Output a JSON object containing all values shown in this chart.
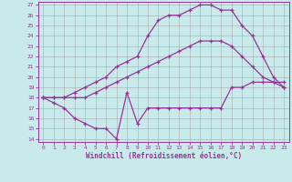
{
  "xlabel": "Windchill (Refroidissement éolien,°C)",
  "background_color": "#c8eaea",
  "line_color": "#993399",
  "grid_color": "#aaaaaa",
  "xlim": [
    -0.5,
    23.5
  ],
  "ylim": [
    13.7,
    27.3
  ],
  "xticks": [
    0,
    1,
    2,
    3,
    4,
    5,
    6,
    7,
    8,
    9,
    10,
    11,
    12,
    13,
    14,
    15,
    16,
    17,
    18,
    19,
    20,
    21,
    22,
    23
  ],
  "yticks": [
    14,
    15,
    16,
    17,
    18,
    19,
    20,
    21,
    22,
    23,
    24,
    25,
    26,
    27
  ],
  "series": [
    {
      "x": [
        0,
        1,
        2,
        3,
        4,
        5,
        6,
        7,
        8,
        9,
        10,
        11,
        12,
        13,
        14,
        15,
        16,
        17,
        18,
        19,
        20,
        21,
        22,
        23
      ],
      "y": [
        18,
        17.5,
        17,
        16,
        15.5,
        15,
        15,
        14,
        18.5,
        15.5,
        17,
        17,
        17,
        17,
        17,
        17,
        17,
        17,
        19,
        19,
        19.5,
        19.5,
        19.5,
        19.5
      ]
    },
    {
      "x": [
        0,
        1,
        2,
        3,
        4,
        5,
        6,
        7,
        8,
        9,
        10,
        11,
        12,
        13,
        14,
        15,
        16,
        17,
        18,
        19,
        20,
        21,
        22,
        23
      ],
      "y": [
        18,
        18,
        18,
        18,
        18,
        18.5,
        19,
        19.5,
        20,
        20.5,
        21,
        21.5,
        22,
        22.5,
        23,
        23.5,
        23.5,
        23.5,
        23,
        22,
        21,
        20,
        19.5,
        19
      ]
    },
    {
      "x": [
        0,
        1,
        2,
        3,
        4,
        5,
        6,
        7,
        8,
        9,
        10,
        11,
        12,
        13,
        14,
        15,
        16,
        17,
        18,
        19,
        20,
        21,
        22,
        23
      ],
      "y": [
        18,
        18,
        18,
        18.5,
        19,
        19.5,
        20,
        21,
        21.5,
        22,
        24,
        25.5,
        26,
        26,
        26.5,
        27,
        27,
        26.5,
        26.5,
        25,
        24,
        22,
        20,
        19
      ]
    }
  ]
}
